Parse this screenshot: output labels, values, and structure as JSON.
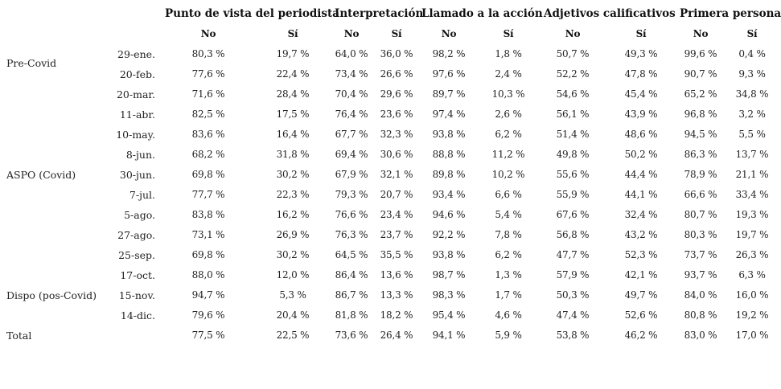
{
  "table": {
    "groups": [
      {
        "label": "Punto de vista del periodista"
      },
      {
        "label": "Interpretación"
      },
      {
        "label": "Llamado a la acción"
      },
      {
        "label": "Adjetivos calificativos"
      },
      {
        "label": "Primera persona"
      }
    ],
    "subheaders": [
      "No",
      "Sí",
      "No",
      "Sí",
      "No",
      "Sí",
      "No",
      "Sí",
      "No",
      "Sí"
    ],
    "rows": [
      {
        "period": "",
        "date": "29-ene.",
        "values": [
          "80,3 %",
          "19,7 %",
          "64,0 %",
          "36,0 %",
          "98,2 %",
          "1,8 %",
          "50,7 %",
          "49,3 %",
          "99,6 %",
          "0,4 %"
        ]
      },
      {
        "period": "",
        "date": "20-feb.",
        "values": [
          "77,6 %",
          "22,4 %",
          "73,4 %",
          "26,6 %",
          "97,6 %",
          "2,4 %",
          "52,2 %",
          "47,8 %",
          "90,7 %",
          "9,3 %"
        ]
      },
      {
        "period": "",
        "date": "20-mar.",
        "values": [
          "71,6 %",
          "28,4 %",
          "70,4 %",
          "29,6 %",
          "89,7 %",
          "10,3 %",
          "54,6 %",
          "45,4 %",
          "65,2 %",
          "34,8 %"
        ]
      },
      {
        "period": "",
        "date": "11-abr.",
        "values": [
          "82,5 %",
          "17,5 %",
          "76,4 %",
          "23,6 %",
          "97,4 %",
          "2,6 %",
          "56,1 %",
          "43,9 %",
          "96,8 %",
          "3,2 %"
        ]
      },
      {
        "period": "",
        "date": "10-may.",
        "values": [
          "83,6 %",
          "16,4 %",
          "67,7 %",
          "32,3 %",
          "93,8 %",
          "6,2 %",
          "51,4 %",
          "48,6 %",
          "94,5 %",
          "5,5 %"
        ]
      },
      {
        "period": "",
        "date": "8-jun.",
        "values": [
          "68,2 %",
          "31,8 %",
          "69,4 %",
          "30,6 %",
          "88,8 %",
          "11,2 %",
          "49,8 %",
          "50,2 %",
          "86,3 %",
          "13,7 %"
        ]
      },
      {
        "period": "",
        "date": "30-jun.",
        "values": [
          "69,8 %",
          "30,2 %",
          "67,9 %",
          "32,1 %",
          "89,8 %",
          "10,2 %",
          "55,6 %",
          "44,4 %",
          "78,9 %",
          "21,1 %"
        ]
      },
      {
        "period": "",
        "date": "7-jul.",
        "values": [
          "77,7 %",
          "22,3 %",
          "79,3 %",
          "20,7 %",
          "93,4 %",
          "6,6 %",
          "55,9 %",
          "44,1 %",
          "66,6 %",
          "33,4 %"
        ]
      },
      {
        "period": "",
        "date": "5-ago.",
        "values": [
          "83,8 %",
          "16,2 %",
          "76,6 %",
          "23,4 %",
          "94,6 %",
          "5,4 %",
          "67,6 %",
          "32,4 %",
          "80,7 %",
          "19,3 %"
        ]
      },
      {
        "period": "",
        "date": "27-ago.",
        "values": [
          "73,1 %",
          "26,9 %",
          "76,3 %",
          "23,7 %",
          "92,2 %",
          "7,8 %",
          "56,8 %",
          "43,2 %",
          "80,3 %",
          "19,7 %"
        ]
      },
      {
        "period": "",
        "date": "25-sep.",
        "values": [
          "69,8 %",
          "30,2 %",
          "64,5 %",
          "35,5 %",
          "93,8 %",
          "6,2 %",
          "47,7 %",
          "52,3 %",
          "73,7 %",
          "26,3 %"
        ]
      },
      {
        "period": "",
        "date": "17-oct.",
        "values": [
          "88,0 %",
          "12,0 %",
          "86,4 %",
          "13,6 %",
          "98,7 %",
          "1,3 %",
          "57,9 %",
          "42,1 %",
          "93,7 %",
          "6,3 %"
        ]
      },
      {
        "period": "Dispo (pos-Covid)",
        "date": "15-nov.",
        "values": [
          "94,7 %",
          "5,3 %",
          "86,7 %",
          "13,3 %",
          "98,3 %",
          "1,7 %",
          "50,3 %",
          "49,7 %",
          "84,0 %",
          "16,0 %"
        ]
      },
      {
        "period": "",
        "date": "14-dic.",
        "values": [
          "79,6 %",
          "20,4 %",
          "81,8 %",
          "18,2 %",
          "95,4 %",
          "4,6 %",
          "47,4 %",
          "52,6 %",
          "80,8 %",
          "19,2 %"
        ]
      },
      {
        "period": "Total",
        "date": "",
        "values": [
          "77,5 %",
          "22,5 %",
          "73,6 %",
          "26,4 %",
          "94,1 %",
          "5,9 %",
          "53,8 %",
          "46,2 %",
          "83,0 %",
          "17,0 %"
        ]
      }
    ],
    "period_labels": {
      "pre_covid": "Pre-Covid",
      "aspo": "ASPO (Covid)"
    }
  }
}
